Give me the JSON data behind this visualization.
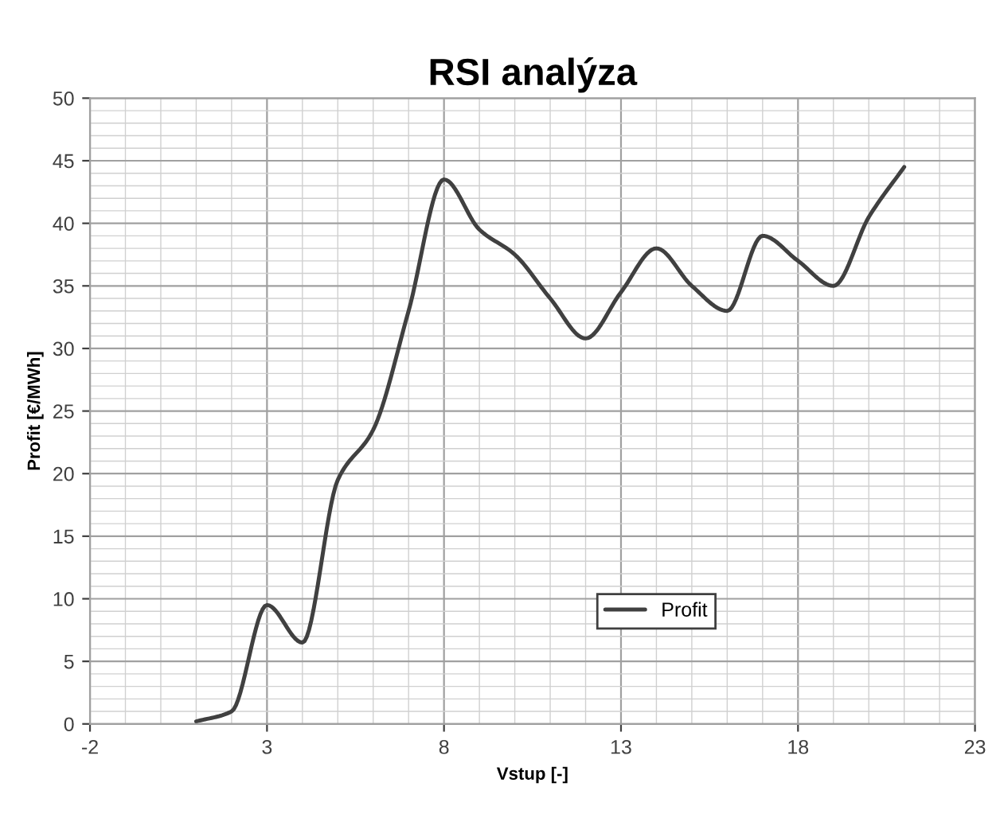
{
  "chart_data": {
    "type": "line",
    "title": "RSI analýza",
    "xlabel": "Vstup [-]",
    "ylabel": "Profit [€/MWh]",
    "x": [
      1,
      2,
      3,
      4,
      5,
      6,
      7,
      8,
      9,
      10,
      11,
      12,
      13,
      14,
      15,
      16,
      17,
      18,
      19,
      20,
      21
    ],
    "series": [
      {
        "name": "Profit",
        "color": "#404040",
        "values": [
          0.2,
          1,
          9.5,
          6.5,
          19.5,
          23.5,
          33,
          43.5,
          39.5,
          37.5,
          34,
          30.8,
          34.5,
          38,
          35,
          33,
          39,
          37,
          35,
          40.5,
          44.5
        ]
      }
    ],
    "xlim": [
      -2,
      23
    ],
    "xticks": [
      -2,
      3,
      8,
      13,
      18,
      23
    ],
    "ylim": [
      0,
      50
    ],
    "yticks": [
      0,
      5,
      10,
      15,
      20,
      25,
      30,
      35,
      40,
      45,
      50
    ],
    "grid": true,
    "legend": "bottom right",
    "marker": "none",
    "line_style": "solid"
  }
}
